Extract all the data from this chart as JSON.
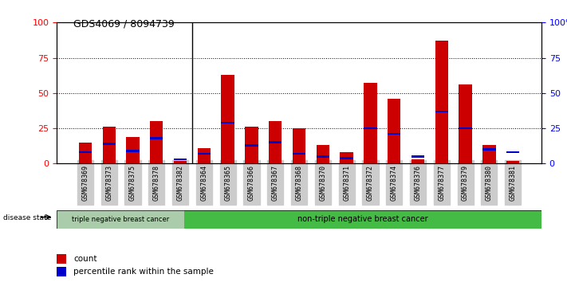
{
  "title": "GDS4069 / 8094739",
  "samples": [
    "GSM678369",
    "GSM678373",
    "GSM678375",
    "GSM678378",
    "GSM678382",
    "GSM678364",
    "GSM678365",
    "GSM678366",
    "GSM678367",
    "GSM678368",
    "GSM678370",
    "GSM678371",
    "GSM678372",
    "GSM678374",
    "GSM678376",
    "GSM678377",
    "GSM678379",
    "GSM678380",
    "GSM678381"
  ],
  "count_values": [
    15,
    26,
    19,
    30,
    2,
    11,
    63,
    26,
    30,
    25,
    13,
    8,
    57,
    46,
    3,
    87,
    56,
    13,
    2
  ],
  "percentile_values": [
    8,
    14,
    9,
    18,
    3,
    7,
    29,
    13,
    15,
    7,
    5,
    4,
    25,
    21,
    5,
    37,
    25,
    10,
    8
  ],
  "group1_count": 5,
  "group1_label": "triple negative breast cancer",
  "group2_label": "non-triple negative breast cancer",
  "bar_color": "#cc0000",
  "percentile_color": "#0000cc",
  "ylim": [
    0,
    100
  ],
  "yticks": [
    0,
    25,
    50,
    75,
    100
  ],
  "group1_bg": "#aaccaa",
  "group2_bg": "#44bb44",
  "legend_count": "count",
  "legend_pct": "percentile rank within the sample",
  "title_fontsize": 9,
  "bar_width": 0.55
}
